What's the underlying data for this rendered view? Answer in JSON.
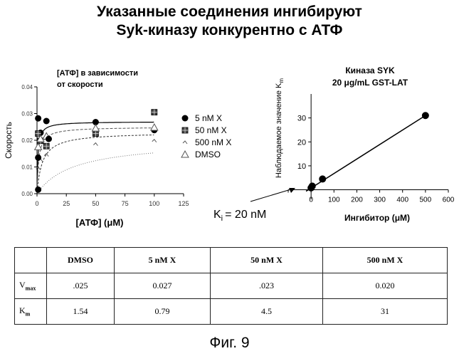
{
  "title_line1": "Указанные соединения ингибируют",
  "title_line2": "Syk-киназу конкурентно с АТФ",
  "caption": "Фиг. 9",
  "chart_data": [
    {
      "type": "scatter",
      "title": "[АТФ] в зависимости от скорости",
      "title_lines": [
        "[АТФ] в зависимости",
        "от скорости"
      ],
      "xlabel": "[АТФ] (μM)",
      "ylabel": "Скорость",
      "xlim": [
        0,
        125
      ],
      "ylim": [
        0,
        0.04
      ],
      "x_ticks": [
        0,
        25,
        50,
        75,
        100,
        125
      ],
      "y_ticks": [
        0.0,
        0.01,
        0.02,
        0.03,
        0.04
      ],
      "x_tick_labels": [
        "0",
        "25",
        "50",
        "75",
        "100",
        "125"
      ],
      "y_tick_labels": [
        "0.00",
        "0.01",
        "0.02",
        "0.03",
        "0.04"
      ],
      "legend_position": "right",
      "series": [
        {
          "name": "5 nM  X",
          "marker": "filled-circle",
          "x": [
            1,
            3,
            8,
            50,
            100
          ],
          "y": [
            0.0282,
            0.0228,
            0.0272,
            0.0268,
            0.0238
          ],
          "fit": {
            "vmax": 0.027,
            "km": 0.79
          }
        },
        {
          "name": "50 nM  X",
          "marker": "filled-square",
          "x": [
            1,
            3,
            8,
            50,
            100
          ],
          "y": [
            0.0225,
            0.0198,
            0.0178,
            0.0225,
            0.0305
          ],
          "fit": {
            "vmax": 0.023,
            "km": 4.5
          }
        },
        {
          "name": "500 nM  X",
          "marker": "small-tick",
          "x": [
            1,
            3,
            8,
            50,
            100
          ],
          "y": [
            0.0095,
            0.0125,
            0.0145,
            0.0185,
            0.0198
          ],
          "fit": {
            "vmax": 0.02,
            "km": 31
          }
        },
        {
          "name": "DMSO",
          "marker": "open-triangle",
          "x": [
            1,
            3,
            8,
            50,
            100
          ],
          "y": [
            0.0175,
            0.0205,
            0.0215,
            0.0245,
            0.0248
          ],
          "fit": {
            "vmax": 0.025,
            "km": 1.54
          }
        }
      ],
      "extra_points": [
        {
          "x": 1,
          "y": 0.0015,
          "marker": "filled-circle"
        },
        {
          "x": 1,
          "y": 0.0135,
          "marker": "filled-circle"
        },
        {
          "x": 10,
          "y": 0.0205,
          "marker": "filled-circle"
        }
      ]
    },
    {
      "type": "line",
      "title_lines": [
        "Киназа SYK",
        "20 μg/mL GST-LAT"
      ],
      "xlabel": "Ингибитор (μM)",
      "ylabel": "Наблюдаемое значение K",
      "ylabel_sub": "m",
      "xlim": [
        -100,
        600
      ],
      "ylim": [
        -4,
        40
      ],
      "x_ticks": [
        -100,
        0,
        100,
        200,
        300,
        400,
        500,
        600
      ],
      "x_tick_labels": [
        "",
        "0",
        "100",
        "200",
        "300",
        "400",
        "500",
        "600"
      ],
      "y_ticks": [
        0,
        10,
        20,
        30
      ],
      "y_tick_labels": [
        "",
        "10",
        "20",
        "30"
      ],
      "x": [
        0,
        5,
        50,
        500
      ],
      "y": [
        0.79,
        1.54,
        4.5,
        31
      ],
      "fit_line": {
        "x": [
          -22,
          500
        ],
        "y": [
          -0.6,
          31
        ]
      },
      "annotation": {
        "text": "= 20 nM",
        "symbol": "K",
        "sub": "i"
      }
    }
  ],
  "table": {
    "headers": [
      "",
      "DMSO",
      "5 nM X",
      "50 nM X",
      "500 nM X"
    ],
    "rows": [
      {
        "label": "V",
        "sub": "max",
        "values": [
          ".025",
          "0.027",
          ".023",
          "0.020"
        ]
      },
      {
        "label": "K",
        "sub": "m",
        "values": [
          "1.54",
          "0.79",
          "4.5",
          "31"
        ]
      }
    ]
  }
}
